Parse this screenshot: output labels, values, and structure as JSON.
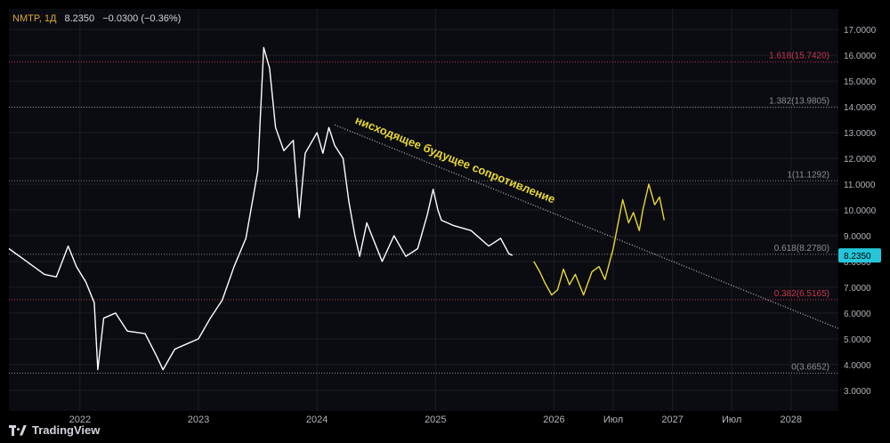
{
  "header": {
    "symbol": "NMTP, 1Д",
    "last": "8.2350",
    "change": "−0.0300 (−0.36%)"
  },
  "brand": {
    "name": "TradingView"
  },
  "colors": {
    "background": "#0b0c11",
    "price_line": "#ffffff",
    "projection": "#e8d832",
    "fib_red": "#c8364d",
    "fib_grey": "#8a8d96",
    "axis_text": "#b2b5be",
    "price_badge": "#26c6da"
  },
  "chart_data": {
    "type": "line",
    "title": "",
    "ylabel": "",
    "xlabel": "",
    "ylim": [
      2.2,
      17.8
    ],
    "xlim": [
      2021.4,
      2028.4
    ],
    "y_ticks": [
      "3.0000",
      "4.0000",
      "5.0000",
      "6.0000",
      "7.0000",
      "8.0000",
      "9.0000",
      "10.0000",
      "11.0000",
      "12.0000",
      "13.0000",
      "14.0000",
      "15.0000",
      "16.0000",
      "17.0000"
    ],
    "x_ticks": [
      {
        "label": "2022",
        "x": 2022.0
      },
      {
        "label": "2023",
        "x": 2023.0
      },
      {
        "label": "2024",
        "x": 2024.0
      },
      {
        "label": "2025",
        "x": 2025.0
      },
      {
        "label": "2026",
        "x": 2026.0
      },
      {
        "label": "Июл",
        "x": 2026.5
      },
      {
        "label": "2027",
        "x": 2027.0
      },
      {
        "label": "Июл",
        "x": 2027.5
      },
      {
        "label": "2028",
        "x": 2028.0
      }
    ],
    "current_price": "8.2350",
    "current_price_value": 8.235,
    "series": [
      {
        "points": [
          [
            2021.4,
            8.5
          ],
          [
            2021.55,
            8.0
          ],
          [
            2021.7,
            7.5
          ],
          [
            2021.8,
            7.4
          ],
          [
            2021.9,
            8.6
          ],
          [
            2021.97,
            7.8
          ],
          [
            2022.05,
            7.2
          ],
          [
            2022.12,
            6.4
          ],
          [
            2022.15,
            3.8
          ],
          [
            2022.2,
            5.8
          ],
          [
            2022.3,
            6.0
          ],
          [
            2022.4,
            5.3
          ],
          [
            2022.55,
            5.2
          ],
          [
            2022.65,
            4.3
          ],
          [
            2022.7,
            3.8
          ],
          [
            2022.8,
            4.6
          ],
          [
            2022.9,
            4.8
          ],
          [
            2023.0,
            5.0
          ],
          [
            2023.1,
            5.8
          ],
          [
            2023.2,
            6.5
          ],
          [
            2023.3,
            7.8
          ],
          [
            2023.4,
            8.9
          ],
          [
            2023.5,
            11.5
          ],
          [
            2023.55,
            16.3
          ],
          [
            2023.6,
            15.5
          ],
          [
            2023.65,
            13.2
          ],
          [
            2023.72,
            12.3
          ],
          [
            2023.8,
            12.7
          ],
          [
            2023.85,
            9.7
          ],
          [
            2023.9,
            12.2
          ],
          [
            2024.0,
            13.0
          ],
          [
            2024.05,
            12.2
          ],
          [
            2024.1,
            13.2
          ],
          [
            2024.15,
            12.5
          ],
          [
            2024.22,
            12.0
          ],
          [
            2024.27,
            10.3
          ],
          [
            2024.32,
            9.0
          ],
          [
            2024.36,
            8.2
          ],
          [
            2024.42,
            9.5
          ],
          [
            2024.55,
            8.0
          ],
          [
            2024.65,
            9.0
          ],
          [
            2024.75,
            8.2
          ],
          [
            2024.85,
            8.5
          ],
          [
            2024.93,
            9.8
          ],
          [
            2024.98,
            10.8
          ],
          [
            2025.02,
            10.0
          ],
          [
            2025.05,
            9.6
          ],
          [
            2025.15,
            9.4
          ],
          [
            2025.3,
            9.2
          ],
          [
            2025.45,
            8.6
          ],
          [
            2025.55,
            8.9
          ],
          [
            2025.62,
            8.3
          ],
          [
            2025.65,
            8.235
          ]
        ]
      },
      {
        "points": [
          [
            2025.83,
            8.0
          ],
          [
            2025.88,
            7.6
          ],
          [
            2025.92,
            7.2
          ],
          [
            2025.98,
            6.7
          ],
          [
            2026.03,
            6.9
          ],
          [
            2026.08,
            7.7
          ],
          [
            2026.13,
            7.1
          ],
          [
            2026.18,
            7.5
          ],
          [
            2026.25,
            6.7
          ],
          [
            2026.32,
            7.6
          ],
          [
            2026.38,
            7.8
          ],
          [
            2026.43,
            7.3
          ],
          [
            2026.5,
            8.5
          ],
          [
            2026.55,
            9.7
          ],
          [
            2026.58,
            10.4
          ],
          [
            2026.63,
            9.5
          ],
          [
            2026.67,
            9.9
          ],
          [
            2026.72,
            9.2
          ],
          [
            2026.75,
            10.0
          ],
          [
            2026.8,
            11.0
          ],
          [
            2026.85,
            10.2
          ],
          [
            2026.89,
            10.5
          ],
          [
            2026.93,
            9.6
          ]
        ]
      }
    ],
    "trendline": {
      "from": [
        2024.15,
        13.3
      ],
      "to": [
        2028.4,
        5.4
      ]
    },
    "annotation": {
      "text": "нисходящее будущее сопротивление",
      "at": [
        2025.0,
        11.9
      ]
    },
    "fib_levels": [
      {
        "label": "1.618(15.7420)",
        "value": 15.742,
        "color": "#c8364d"
      },
      {
        "label": "1.382(13.9805)",
        "value": 13.9805,
        "color": "#8a8d96"
      },
      {
        "label": "1(11.1292)",
        "value": 11.1292,
        "color": "#8a8d96"
      },
      {
        "label": "0.618(8.2780)",
        "value": 8.278,
        "color": "#8a8d96"
      },
      {
        "label": "0.382(6.5165)",
        "value": 6.5165,
        "color": "#c8364d"
      },
      {
        "label": "0(3.6652)",
        "value": 3.6652,
        "color": "#8a8d96"
      }
    ]
  }
}
